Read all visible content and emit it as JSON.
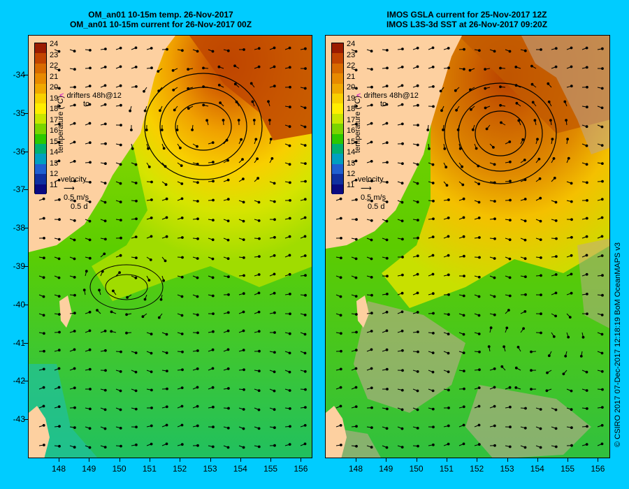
{
  "left": {
    "title_line1": "OM_an01 10-15m temp. 26-Nov-2017",
    "title_line2": "OM_an01 10-15m current for 26-Nov-2017 00Z"
  },
  "right": {
    "title_line1": "IMOS GSLA current for 25-Nov-2017 12Z",
    "title_line2": "IMOS L3S-3d SST at 26-Nov-2017 09:20Z"
  },
  "latitude_ticks": [
    "-34",
    "-35",
    "-36",
    "-37",
    "-38",
    "-39",
    "-40",
    "-41",
    "-42",
    "-43"
  ],
  "longitude_ticks": [
    "148",
    "149",
    "150",
    "151",
    "152",
    "153",
    "154",
    "155",
    "156"
  ],
  "colorbar": {
    "labels": [
      "24",
      "23",
      "22",
      "21",
      "20",
      "19",
      "18",
      "17",
      "16",
      "15",
      "14",
      "13",
      "12",
      "11"
    ],
    "title": "temperature (°C)",
    "colors": [
      "#9b1c00",
      "#c24400",
      "#d86a00",
      "#e88a00",
      "#f0a800",
      "#f8d000",
      "#ffee00",
      "#c8e600",
      "#7ad400",
      "#2cc800",
      "#00b070",
      "#00a0c0",
      "#2060d0",
      "#1030a0",
      "#0a0a80"
    ]
  },
  "drifters_label": "drifters 48h@12",
  "drifters_to": "to",
  "velocity": {
    "label": "velocity",
    "speed": "0.5 m/s",
    "duration": "0.5 d"
  },
  "credit": "© CSIRO 2017   07-Dec-2017 12:18:19 BoM OceanMAPS v3",
  "colors": {
    "background": "#00ccff",
    "land": "#fdd0a0",
    "missing": "#c0a890"
  }
}
